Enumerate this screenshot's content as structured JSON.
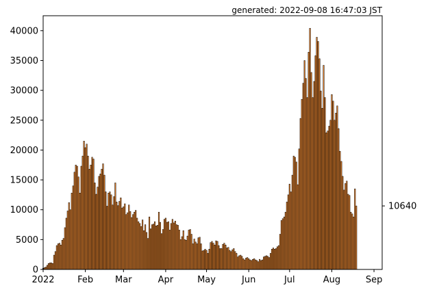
{
  "chart_data": {
    "type": "bar",
    "title": "",
    "xlabel": "",
    "ylabel": "",
    "generated": "generated: 2022-09-08 16:47:03 JST",
    "bar_color": "#e8822a",
    "edge_color": "#000000",
    "ylim": [
      0,
      42500
    ],
    "xlim": [
      "2022-01-01",
      "2022-09-07"
    ],
    "y_ticks": [
      0,
      5000,
      10000,
      15000,
      20000,
      25000,
      30000,
      35000,
      40000
    ],
    "x_ticks": [
      {
        "date": "2022-01-01",
        "label": "2022"
      },
      {
        "date": "2022-02-01",
        "label": "Feb"
      },
      {
        "date": "2022-03-01",
        "label": "Mar"
      },
      {
        "date": "2022-04-01",
        "label": "Apr"
      },
      {
        "date": "2022-05-01",
        "label": "May"
      },
      {
        "date": "2022-06-01",
        "label": "Jun"
      },
      {
        "date": "2022-07-01",
        "label": "Jul"
      },
      {
        "date": "2022-08-01",
        "label": "Aug"
      },
      {
        "date": "2022-09-01",
        "label": "Sep"
      }
    ],
    "latest_value_label": "10640",
    "latest_value": 10640,
    "series": [
      {
        "start_date": "2022-01-01",
        "values": [
          200,
          300,
          400,
          700,
          1000,
          1100,
          1100,
          1000,
          2400,
          3000,
          4000,
          4300,
          4400,
          4100,
          4900,
          5200,
          7000,
          8600,
          9800,
          11200,
          10000,
          12800,
          14000,
          16300,
          17500,
          17300,
          15500,
          12800,
          17300,
          19000,
          21500,
          20400,
          21000,
          19000,
          16800,
          17500,
          18800,
          18500,
          14500,
          12600,
          13800,
          15600,
          16000,
          16800,
          17700,
          15800,
          13000,
          10600,
          12800,
          13000,
          12500,
          10800,
          12200,
          14500,
          11300,
          10700,
          11400,
          12000,
          10300,
          10500,
          11000,
          9200,
          9500,
          10800,
          9700,
          8700,
          9200,
          9600,
          9900,
          8600,
          8000,
          7700,
          7200,
          8300,
          6500,
          7500,
          6200,
          5200,
          8800,
          6800,
          7500,
          7600,
          8000,
          7300,
          7400,
          9600,
          7900,
          6000,
          6700,
          8400,
          8600,
          7900,
          8000,
          6600,
          7700,
          8400,
          7800,
          8100,
          7500,
          7400,
          6600,
          5000,
          5500,
          6500,
          5000,
          4900,
          5600,
          6600,
          6700,
          5900,
          4300,
          5100,
          4600,
          4300,
          5300,
          5400,
          4300,
          3100,
          3200,
          3400,
          3200,
          2700,
          3400,
          4500,
          4700,
          4400,
          4100,
          4800,
          4700,
          4000,
          3500,
          3500,
          4200,
          4400,
          4100,
          3600,
          3700,
          3200,
          3000,
          3300,
          3500,
          3000,
          2700,
          2100,
          2300,
          2400,
          2200,
          1800,
          1600,
          1900,
          2000,
          1800,
          1600,
          1500,
          1700,
          1800,
          1600,
          1500,
          1300,
          1700,
          1500,
          1600,
          2100,
          2200,
          2300,
          2200,
          2000,
          2700,
          3400,
          3600,
          3400,
          3500,
          3800,
          4000,
          5900,
          8200,
          8500,
          8800,
          9600,
          11300,
          12500,
          14300,
          13000,
          15800,
          19000,
          18800,
          18000,
          14200,
          20200,
          25300,
          28500,
          31200,
          35000,
          32000,
          28800,
          36400,
          40400,
          33000,
          28800,
          31500,
          35800,
          38900,
          38200,
          35300,
          29900,
          27000,
          34200,
          28800,
          22900,
          23200,
          24000,
          25000,
          29300,
          28200,
          25000,
          26200,
          27400,
          23600,
          19800,
          18100,
          15600,
          13300,
          14400,
          14800,
          12600,
          12400,
          9600,
          9300,
          8800,
          13500,
          10640
        ]
      }
    ]
  }
}
